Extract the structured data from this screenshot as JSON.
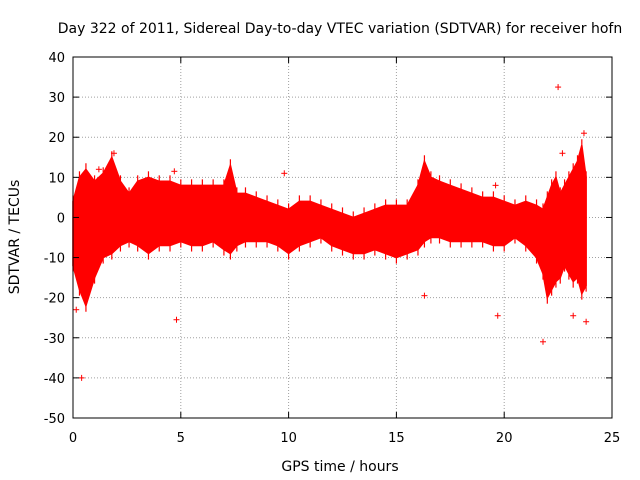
{
  "chart_data": {
    "type": "scatter",
    "title": "Day 322 of 2011, Sidereal Day-to-day VTEC variation (SDTVAR) for receiver hofn",
    "xlabel": "GPS time / hours",
    "ylabel": "SDTVAR / TECUs",
    "xlim": [
      0,
      25
    ],
    "ylim": [
      -50,
      40
    ],
    "x_ticks": [
      0,
      5,
      10,
      15,
      20,
      25
    ],
    "y_ticks": [
      -50,
      -40,
      -30,
      -20,
      -10,
      0,
      10,
      20,
      30,
      40
    ],
    "grid": true,
    "marker": "+",
    "series": [
      {
        "name": "SDTVAR",
        "color": "#ff0000",
        "envelope": {
          "x": [
            0.0,
            0.3,
            0.6,
            1.0,
            1.4,
            1.8,
            2.2,
            2.6,
            3.0,
            3.5,
            4.0,
            4.5,
            5.0,
            5.5,
            6.0,
            6.5,
            7.0,
            7.3,
            7.6,
            8.0,
            8.5,
            9.0,
            9.5,
            10.0,
            10.5,
            11.0,
            11.5,
            12.0,
            12.5,
            13.0,
            13.5,
            14.0,
            14.5,
            15.0,
            15.5,
            16.0,
            16.3,
            16.6,
            17.0,
            17.5,
            18.0,
            18.5,
            19.0,
            19.5,
            20.0,
            20.5,
            21.0,
            21.5,
            21.8,
            22.0,
            22.2,
            22.4,
            22.6,
            22.8,
            23.0,
            23.2,
            23.4,
            23.6,
            23.8
          ],
          "upper": [
            4,
            10,
            12,
            9,
            11,
            15,
            9,
            6,
            9,
            10,
            9,
            9,
            8,
            8,
            8,
            8,
            8,
            13,
            6,
            6,
            5,
            4,
            3,
            2,
            4,
            4,
            3,
            2,
            1,
            0,
            1,
            2,
            3,
            3,
            3,
            8,
            14,
            10,
            9,
            8,
            7,
            6,
            5,
            5,
            4,
            3,
            4,
            3,
            2,
            5,
            8,
            10,
            6,
            8,
            10,
            12,
            14,
            18,
            10
          ],
          "lower": [
            -12,
            -18,
            -22,
            -15,
            -10,
            -9,
            -7,
            -6,
            -7,
            -9,
            -7,
            -7,
            -6,
            -7,
            -7,
            -6,
            -8,
            -9,
            -7,
            -6,
            -6,
            -6,
            -7,
            -9,
            -7,
            -6,
            -5,
            -7,
            -8,
            -9,
            -9,
            -8,
            -9,
            -10,
            -9,
            -8,
            -6,
            -5,
            -5,
            -6,
            -6,
            -6,
            -6,
            -7,
            -7,
            -5,
            -7,
            -10,
            -14,
            -20,
            -18,
            -16,
            -15,
            -12,
            -14,
            -16,
            -15,
            -19,
            -17
          ]
        },
        "outliers": [
          {
            "x": 0.4,
            "y": -40
          },
          {
            "x": 0.15,
            "y": -23
          },
          {
            "x": 1.2,
            "y": 12
          },
          {
            "x": 1.9,
            "y": 16
          },
          {
            "x": 4.7,
            "y": 11.5
          },
          {
            "x": 4.8,
            "y": -25.5
          },
          {
            "x": 9.8,
            "y": 11
          },
          {
            "x": 16.3,
            "y": -19.5
          },
          {
            "x": 19.7,
            "y": -24.5
          },
          {
            "x": 19.6,
            "y": 8
          },
          {
            "x": 21.8,
            "y": -31
          },
          {
            "x": 22.5,
            "y": 32.5
          },
          {
            "x": 22.7,
            "y": 16
          },
          {
            "x": 23.2,
            "y": -24.5
          },
          {
            "x": 23.7,
            "y": 21
          },
          {
            "x": 23.8,
            "y": -26
          }
        ]
      }
    ]
  }
}
